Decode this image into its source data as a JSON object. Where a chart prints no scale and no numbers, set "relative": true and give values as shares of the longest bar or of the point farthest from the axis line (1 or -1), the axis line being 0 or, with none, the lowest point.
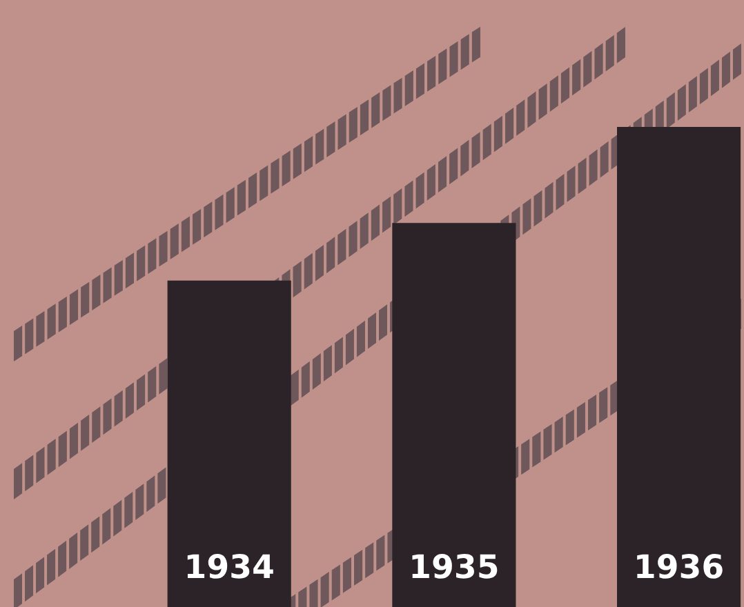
{
  "chart_data": {
    "type": "bar",
    "relative": true,
    "categories": [
      "1934",
      "1935",
      "1936"
    ],
    "values": [
      0.68,
      0.8,
      1
    ],
    "color": "#2b2327"
  }
}
